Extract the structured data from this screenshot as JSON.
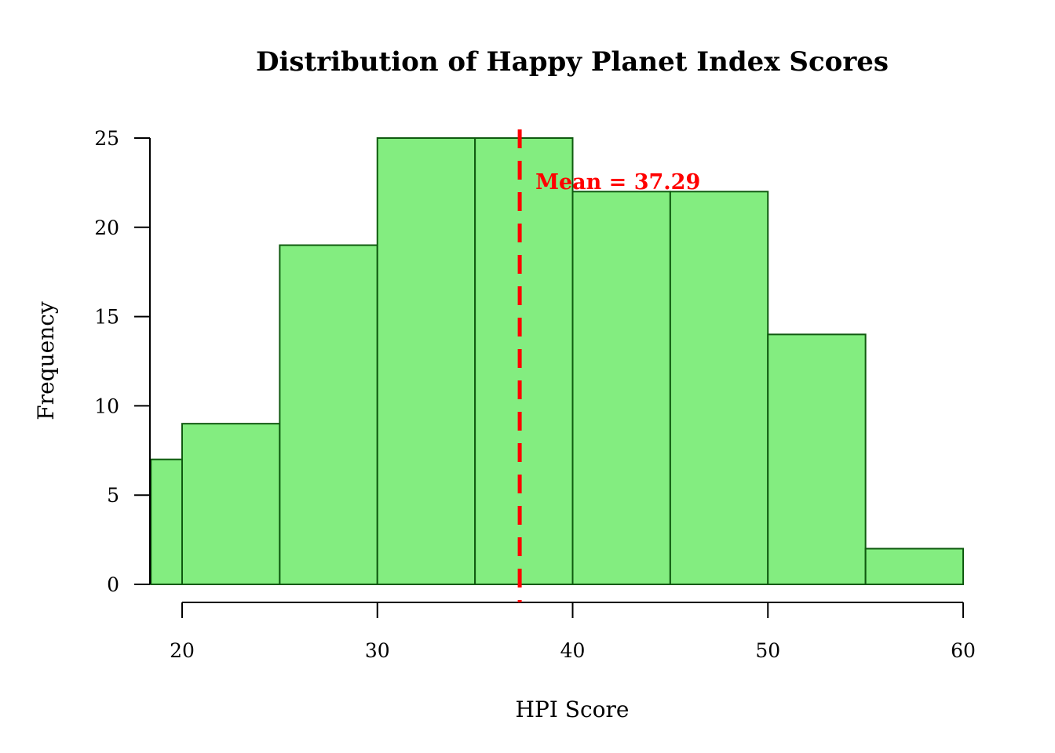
{
  "chart_data": {
    "type": "bar",
    "subtype": "histogram",
    "title": "Distribution of Happy Planet Index Scores",
    "xlabel": "HPI Score",
    "ylabel": "Frequency",
    "bins": [
      {
        "from": 18.4,
        "to": 20,
        "count": 7
      },
      {
        "from": 20,
        "to": 25,
        "count": 9
      },
      {
        "from": 25,
        "to": 30,
        "count": 19
      },
      {
        "from": 30,
        "to": 35,
        "count": 25
      },
      {
        "from": 35,
        "to": 40,
        "count": 25
      },
      {
        "from": 40,
        "to": 45,
        "count": 22
      },
      {
        "from": 45,
        "to": 50,
        "count": 22
      },
      {
        "from": 50,
        "to": 55,
        "count": 14
      },
      {
        "from": 55,
        "to": 60,
        "count": 2
      }
    ],
    "xlim": [
      18.4,
      60
    ],
    "ylim": [
      0,
      25
    ],
    "x_ticks": [
      "20",
      "30",
      "40",
      "50",
      "60"
    ],
    "y_ticks": [
      "0",
      "5",
      "10",
      "15",
      "20",
      "25"
    ],
    "mean": 37.29,
    "mean_label": "Mean = 37.29",
    "bar_color": "#83ED80",
    "bar_edge_color": "#0F5A0F",
    "mean_line_color": "#FF0000",
    "grid": false
  }
}
